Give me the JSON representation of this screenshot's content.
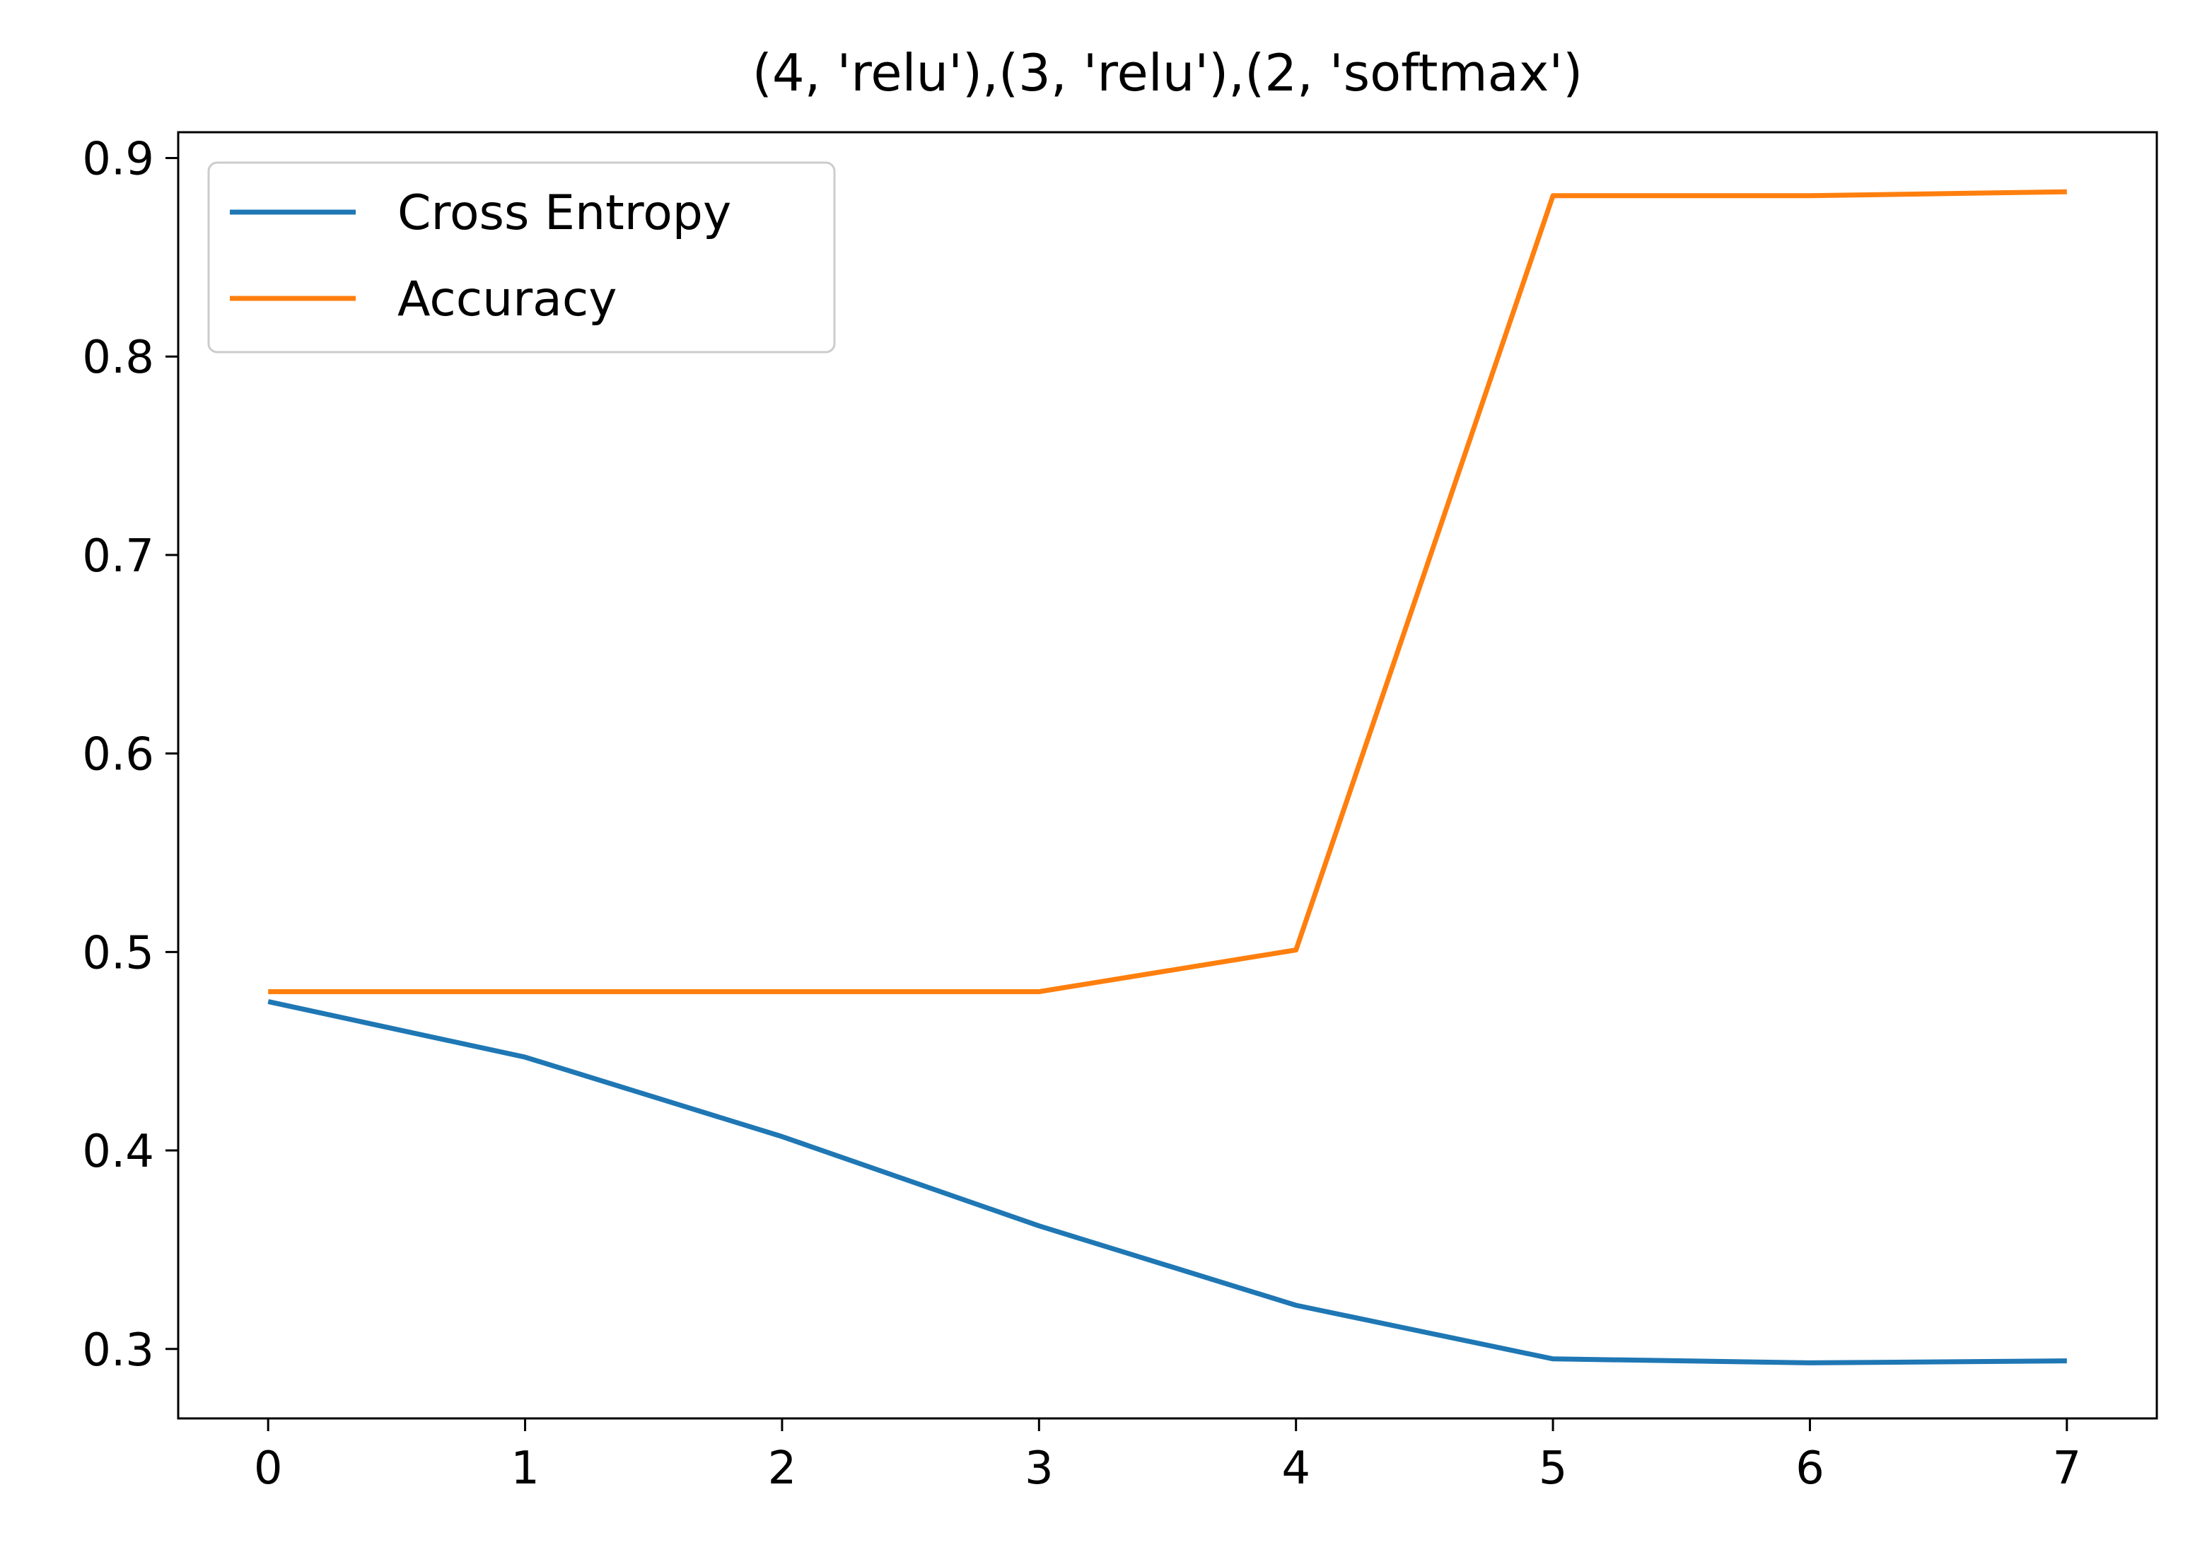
{
  "chart_data": {
    "type": "line",
    "title": "(4, 'relu'),(3, 'relu'),(2, 'softmax')",
    "xlabel": "",
    "ylabel": "",
    "x": [
      0,
      1,
      2,
      3,
      4,
      5,
      6,
      7
    ],
    "xlim": [
      -0.35,
      7.35
    ],
    "ylim": [
      0.265,
      0.913
    ],
    "xticks": [
      0,
      1,
      2,
      3,
      4,
      5,
      6,
      7
    ],
    "yticks": [
      0.3,
      0.4,
      0.5,
      0.6,
      0.7,
      0.8,
      0.9
    ],
    "xtick_labels": [
      "0",
      "1",
      "2",
      "3",
      "4",
      "5",
      "6",
      "7"
    ],
    "ytick_labels": [
      "0.3",
      "0.4",
      "0.5",
      "0.6",
      "0.7",
      "0.8",
      "0.9"
    ],
    "grid": false,
    "legend_position": "top-left",
    "series": [
      {
        "name": "Cross Entropy",
        "color": "#1f77b4",
        "values": [
          0.475,
          0.447,
          0.407,
          0.362,
          0.322,
          0.295,
          0.293,
          0.294
        ]
      },
      {
        "name": "Accuracy",
        "color": "#ff7f0e",
        "values": [
          0.48,
          0.48,
          0.48,
          0.48,
          0.501,
          0.881,
          0.881,
          0.883
        ]
      }
    ]
  }
}
